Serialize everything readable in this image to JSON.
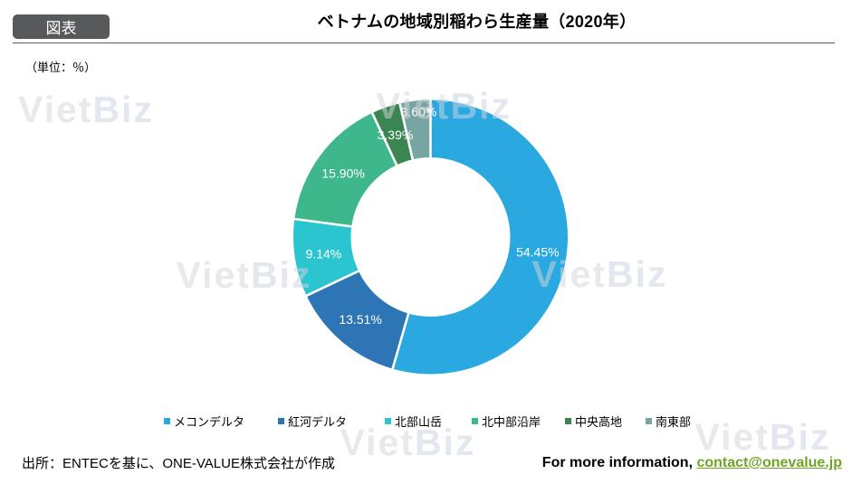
{
  "header": {
    "badge": "図表",
    "title": "ベトナムの地域別稲わら生産量（2020年）"
  },
  "unit_label": "（単位：％）",
  "chart_data": {
    "type": "pie",
    "subtype": "donut",
    "title": "ベトナムの地域別稲わら生産量（2020年）",
    "unit": "％",
    "start_angle_deg": 0,
    "direction": "clockwise",
    "categories": [
      "メコンデルタ",
      "紅河デルタ",
      "北部山岳",
      "北中部沿岸",
      "中央高地",
      "南東部"
    ],
    "values": [
      54.45,
      13.51,
      9.14,
      15.9,
      3.39,
      3.6
    ],
    "labels": [
      "54.45%",
      "13.51%",
      "9.14%",
      "15.90%",
      "3.39%",
      "3.60%"
    ],
    "colors": [
      "#29a9e0",
      "#2e75b6",
      "#2bc5d0",
      "#3fb78d",
      "#3a8552",
      "#76a5a2"
    ],
    "label_color": "#ffffff",
    "legend_position": "bottom"
  },
  "watermark": {
    "part1": "Viet",
    "part2": "Biz"
  },
  "footer": {
    "source": "出所：ENTECを基に、ONE-VALUE株式会社が作成",
    "contact_prefix": "For more information, ",
    "contact_link": "contact@onevalue.jp"
  }
}
